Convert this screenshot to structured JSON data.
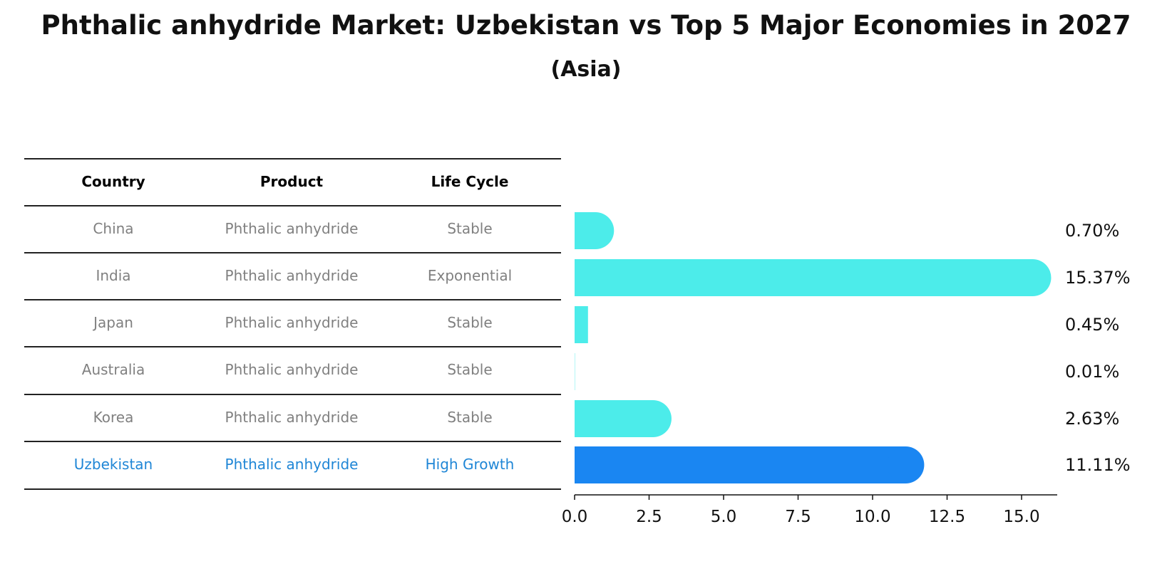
{
  "chart_data": {
    "type": "bar",
    "orientation": "horizontal",
    "title": "Phthalic anhydride Market: Uzbekistan vs Top 5 Major Economies in 2027",
    "subtitle": "(Asia)",
    "table": {
      "headers": [
        "Country",
        "Product",
        "Life Cycle"
      ],
      "rows": [
        {
          "country": "China",
          "product": "Phthalic anhydride",
          "life_cycle": "Stable"
        },
        {
          "country": "India",
          "product": "Phthalic anhydride",
          "life_cycle": "Exponential"
        },
        {
          "country": "Japan",
          "product": "Phthalic anhydride",
          "life_cycle": "Stable"
        },
        {
          "country": "Australia",
          "product": "Phthalic anhydride",
          "life_cycle": "Stable"
        },
        {
          "country": "Korea",
          "product": "Phthalic anhydride",
          "life_cycle": "Stable"
        },
        {
          "country": "Uzbekistan",
          "product": "Phthalic anhydride",
          "life_cycle": "High Growth"
        }
      ]
    },
    "categories": [
      "China",
      "India",
      "Japan",
      "Australia",
      "Korea",
      "Uzbekistan"
    ],
    "values": [
      0.7,
      15.37,
      0.45,
      0.01,
      2.63,
      11.11
    ],
    "value_labels": [
      "0.70%",
      "15.37%",
      "0.45%",
      "0.01%",
      "2.63%",
      "11.11%"
    ],
    "highlight": "Uzbekistan",
    "xlim": [
      0,
      16.2
    ],
    "xticks": [
      0,
      2.5,
      5,
      7.5,
      10,
      12.5,
      15
    ],
    "xtick_labels": [
      "0.0",
      "2.5",
      "5.0",
      "7.5",
      "10.0",
      "12.5",
      "15.0"
    ],
    "colors": {
      "bar": "#4cecea",
      "highlight": "#1a86f2",
      "highlight_text": "#1f86d6",
      "text": "#808080"
    }
  }
}
